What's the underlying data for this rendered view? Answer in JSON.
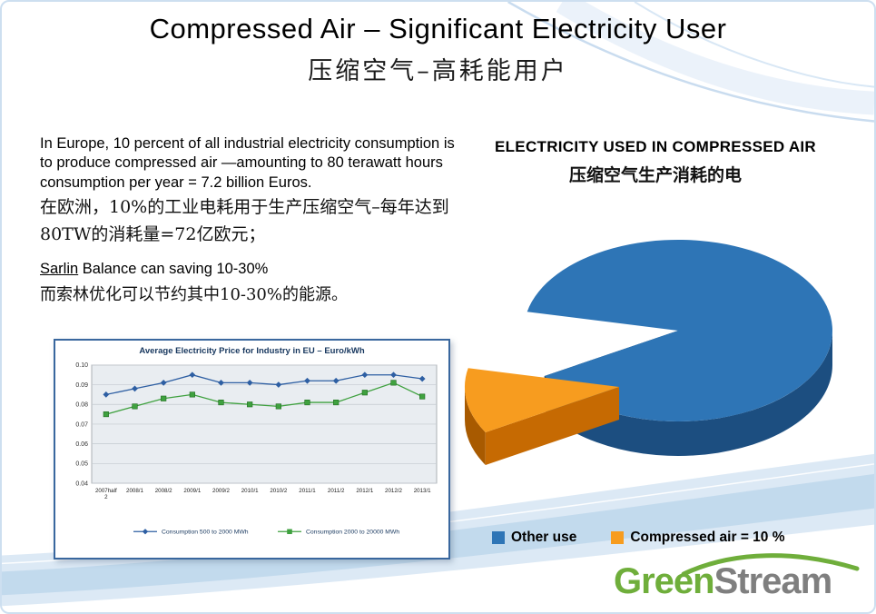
{
  "slide": {
    "title": "Compressed Air – Significant Electricity User",
    "subtitle_zh": "压缩空气–高耗能用户"
  },
  "left_text": {
    "paragraph_en": "In Europe, 10 percent of all industrial electricity consumption is to produce compressed air —amounting to 80 terawatt hours consumption per year = 7.2 billion Euros.",
    "paragraph_zh": "在欧洲，10%的工业电耗用于生产压缩空气–每年达到80TW的消耗量=72亿欧元；",
    "sarlin_name": "Sarlin",
    "sarlin_rest": " Balance can saving 10-30%",
    "sarlin_zh": "而索林优化可以节约其中10-30%的能源。"
  },
  "right_panel": {
    "heading_en": "ELECTRICITY USED IN COMPRESSED AIR",
    "heading_zh": "压缩空气生产消耗的电"
  },
  "logo": {
    "part1": "Green",
    "part2": "Stream"
  },
  "colors": {
    "pie_blue": "#2E75B6",
    "pie_blue_side": "#1C4E80",
    "pie_blue_wall": "#173F63",
    "pie_orange": "#F79C1F",
    "pie_orange_side": "#A85A00",
    "pie_orange_wall": "#C66A02",
    "accent_border": "#39679E"
  },
  "chart_data": [
    {
      "type": "line",
      "title": "Average Electricity Price for Industry in EU – Euro/kWh",
      "categories": [
        "2007half 2",
        "2008/1",
        "2008/2",
        "2009/1",
        "2009/2",
        "2010/1",
        "2010/2",
        "2011/1",
        "2011/2",
        "2012/1",
        "2012/2",
        "2013/1"
      ],
      "series": [
        {
          "name": "Consumption 500 to 2000 MWh",
          "marker": "diamond",
          "color": "#2E5FA3",
          "values": [
            0.085,
            0.088,
            0.091,
            0.095,
            0.091,
            0.091,
            0.09,
            0.092,
            0.092,
            0.095,
            0.095,
            0.093
          ]
        },
        {
          "name": "Consumption 2000 to 20000 MWh",
          "marker": "square",
          "color": "#3FA13F",
          "values": [
            0.075,
            0.079,
            0.083,
            0.085,
            0.081,
            0.08,
            0.079,
            0.081,
            0.081,
            0.086,
            0.091,
            0.084
          ]
        }
      ],
      "ylim": [
        0.04,
        0.1
      ],
      "y_step": 0.01,
      "grid": true,
      "legend_position": "bottom"
    },
    {
      "type": "pie",
      "title": "ELECTRICITY USED IN COMPRESSED AIR",
      "slices": [
        {
          "label": "Other use",
          "value": 90,
          "color": "#2E75B6"
        },
        {
          "label": "Compressed air = 10 %",
          "value": 10,
          "color": "#F79C1F",
          "exploded": true
        }
      ],
      "legend_position": "bottom"
    }
  ]
}
